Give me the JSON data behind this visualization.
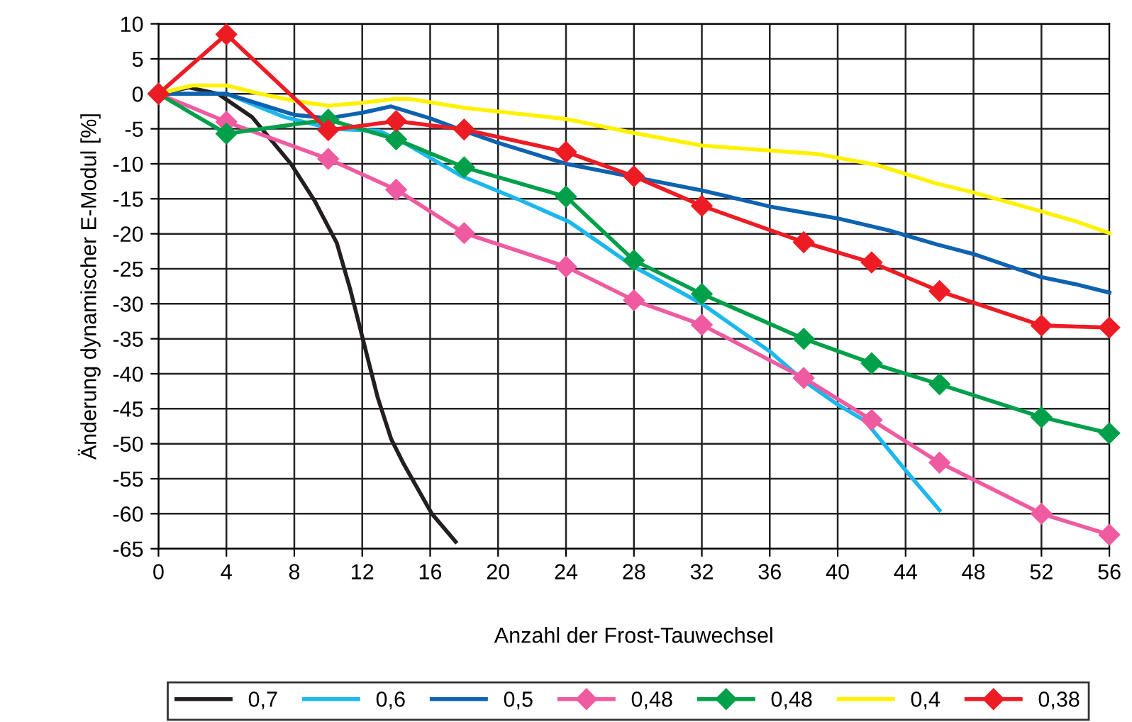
{
  "chart_data": {
    "type": "line",
    "xlabel": "Anzahl der Frost-Tauwechsel",
    "ylabel": "Änderung dynamischer E-Modul [%]",
    "xlim": [
      0,
      56
    ],
    "xticks": [
      0,
      4,
      8,
      12,
      16,
      20,
      24,
      28,
      32,
      36,
      40,
      44,
      48,
      52,
      56
    ],
    "ylim": [
      -65,
      10
    ],
    "yticks": [
      -65,
      -60,
      -55,
      -50,
      -45,
      -40,
      -35,
      -30,
      -25,
      -20,
      -15,
      -10,
      -5,
      0,
      5,
      10
    ],
    "grid": true,
    "legend": "bottom",
    "series": [
      {
        "name": "0,7",
        "color": "#231f20",
        "marker": "none",
        "x": [
          0,
          1.8,
          3.5,
          5.5,
          7.8,
          9.2,
          10.5,
          11.3,
          12.0,
          12.9,
          13.7,
          14.4,
          16.1,
          17.5
        ],
        "values": [
          0,
          0.9,
          0,
          -3.3,
          -10,
          -15.3,
          -21.3,
          -28,
          -34.7,
          -43.3,
          -49.3,
          -52.7,
          -60,
          -64
        ]
      },
      {
        "name": "0,6",
        "color": "#1cb8ec",
        "marker": "none",
        "x": [
          0,
          4,
          7.4,
          10.2,
          13,
          14.7,
          17.8,
          21.4,
          24.2,
          28,
          32,
          36,
          38,
          40,
          41.6,
          44,
          46
        ],
        "values": [
          0,
          0,
          -3.3,
          -5,
          -5.3,
          -7.3,
          -11.7,
          -15.3,
          -18.3,
          -24.7,
          -30,
          -36.8,
          -41,
          -44.4,
          -46.7,
          -53.8,
          -59.5
        ]
      },
      {
        "name": "0,5",
        "color": "#0e62b0",
        "marker": "none",
        "x": [
          0,
          4,
          8,
          10,
          12,
          13.7,
          16,
          18,
          20,
          24,
          28,
          32,
          36,
          40,
          43,
          45.8,
          48,
          52,
          54,
          56
        ],
        "values": [
          0,
          0,
          -3,
          -3.5,
          -2.7,
          -1.8,
          -3.5,
          -5.3,
          -7,
          -10,
          -11.9,
          -13.8,
          -16.1,
          -17.8,
          -19.5,
          -21.5,
          -22.9,
          -26.2,
          -27.2,
          -28.4
        ]
      },
      {
        "name": "0,48",
        "color": "#ef5ba1",
        "marker": "diamond",
        "x": [
          0,
          4,
          10,
          14,
          18,
          24,
          28,
          32,
          38,
          42,
          46,
          52,
          56
        ],
        "values": [
          0,
          -4,
          -9.3,
          -13.7,
          -19.9,
          -24.7,
          -29.5,
          -33,
          -40.6,
          -46.6,
          -52.7,
          -60,
          -63
        ]
      },
      {
        "name": "0,48",
        "color": "#00a04b",
        "marker": "diamond",
        "x": [
          0,
          4,
          10,
          14,
          18,
          24,
          28,
          32,
          38,
          42,
          46,
          52,
          56
        ],
        "values": [
          0,
          -5.7,
          -3.7,
          -6.5,
          -10.5,
          -14.7,
          -23.8,
          -28.6,
          -35,
          -38.5,
          -41.5,
          -46.2,
          -48.5
        ]
      },
      {
        "name": "0,4",
        "color": "#fff200",
        "marker": "none",
        "x": [
          0,
          2,
          4,
          6,
          8,
          10,
          12,
          14,
          15,
          18,
          24,
          28,
          32,
          36,
          38.8,
          42.2,
          45.8,
          48,
          52,
          54,
          56
        ],
        "values": [
          0,
          1.2,
          1.2,
          0,
          -1,
          -1.7,
          -1.3,
          -0.7,
          -0.8,
          -2,
          -3.6,
          -5.6,
          -7.4,
          -8.1,
          -8.6,
          -10.1,
          -12.8,
          -14.1,
          -16.8,
          -18.2,
          -19.9
        ]
      },
      {
        "name": "0,38",
        "color": "#ed1c24",
        "marker": "diamond",
        "x": [
          0,
          4,
          10,
          14,
          18,
          24,
          28,
          32,
          38,
          42,
          46,
          52,
          56
        ],
        "values": [
          0,
          8.5,
          -5.2,
          -3.9,
          -5.1,
          -8.3,
          -11.8,
          -16,
          -21.2,
          -24.1,
          -28.2,
          -33.1,
          -33.4
        ]
      }
    ]
  }
}
